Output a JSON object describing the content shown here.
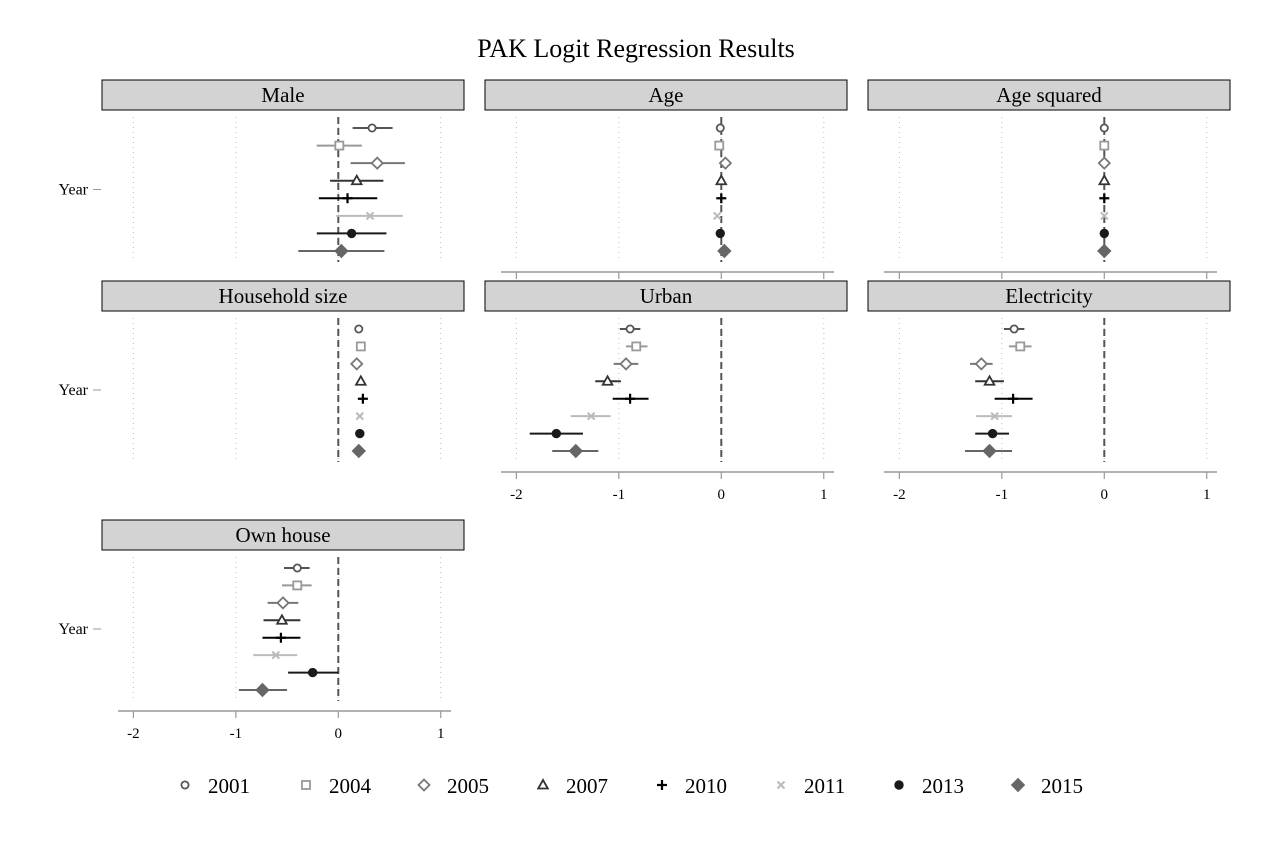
{
  "chart_data": {
    "type": "scatter",
    "subtype": "coefficient-plot",
    "title": "PAK Logit Regression Results",
    "y_axis_label": "Year",
    "x_ticks": [
      -2,
      -1,
      0,
      1
    ],
    "xlim": [
      -2.15,
      1.1
    ],
    "reference_line": 0,
    "grid": "vertical-dotted",
    "legend_position": "bottom",
    "years": [
      "2001",
      "2004",
      "2005",
      "2007",
      "2010",
      "2011",
      "2013",
      "2015"
    ],
    "styles": {
      "2001": {
        "marker": "circle-open",
        "color": "#555555"
      },
      "2004": {
        "marker": "square-open",
        "color": "#999999"
      },
      "2005": {
        "marker": "diamond-open",
        "color": "#777777"
      },
      "2007": {
        "marker": "triangle-open",
        "color": "#333333"
      },
      "2010": {
        "marker": "plus",
        "color": "#000000"
      },
      "2011": {
        "marker": "x",
        "color": "#bbbbbb"
      },
      "2013": {
        "marker": "circle-filled",
        "color": "#1a1a1a"
      },
      "2015": {
        "marker": "diamond-filled",
        "color": "#666666"
      }
    },
    "panels": [
      {
        "name": "Male",
        "show_axis": false,
        "series": [
          {
            "year": "2001",
            "est": 0.33,
            "lo": 0.14,
            "hi": 0.53
          },
          {
            "year": "2004",
            "est": 0.01,
            "lo": -0.21,
            "hi": 0.23
          },
          {
            "year": "2005",
            "est": 0.38,
            "lo": 0.12,
            "hi": 0.65
          },
          {
            "year": "2007",
            "est": 0.18,
            "lo": -0.08,
            "hi": 0.44
          },
          {
            "year": "2010",
            "est": 0.09,
            "lo": -0.19,
            "hi": 0.38
          },
          {
            "year": "2011",
            "est": 0.31,
            "lo": -0.02,
            "hi": 0.63
          },
          {
            "year": "2013",
            "est": 0.13,
            "lo": -0.21,
            "hi": 0.47
          },
          {
            "year": "2015",
            "est": 0.03,
            "lo": -0.39,
            "hi": 0.45
          }
        ]
      },
      {
        "name": "Age",
        "show_axis": true,
        "series": [
          {
            "year": "2001",
            "est": -0.01,
            "lo": -0.02,
            "hi": 0.0
          },
          {
            "year": "2004",
            "est": -0.02,
            "lo": -0.03,
            "hi": -0.01
          },
          {
            "year": "2005",
            "est": 0.04,
            "lo": 0.03,
            "hi": 0.05
          },
          {
            "year": "2007",
            "est": 0.0,
            "lo": -0.01,
            "hi": 0.01
          },
          {
            "year": "2010",
            "est": 0.0,
            "lo": -0.01,
            "hi": 0.01
          },
          {
            "year": "2011",
            "est": -0.04,
            "lo": -0.05,
            "hi": -0.03
          },
          {
            "year": "2013",
            "est": -0.01,
            "lo": -0.02,
            "hi": 0.0
          },
          {
            "year": "2015",
            "est": 0.03,
            "lo": 0.02,
            "hi": 0.04
          }
        ]
      },
      {
        "name": "Age squared",
        "show_axis": true,
        "series": [
          {
            "year": "2001",
            "est": 0.0,
            "lo": 0.0,
            "hi": 0.0
          },
          {
            "year": "2004",
            "est": 0.0,
            "lo": 0.0,
            "hi": 0.0
          },
          {
            "year": "2005",
            "est": 0.0,
            "lo": 0.0,
            "hi": 0.0
          },
          {
            "year": "2007",
            "est": 0.0,
            "lo": 0.0,
            "hi": 0.0
          },
          {
            "year": "2010",
            "est": 0.0,
            "lo": 0.0,
            "hi": 0.0
          },
          {
            "year": "2011",
            "est": 0.0,
            "lo": 0.0,
            "hi": 0.0
          },
          {
            "year": "2013",
            "est": 0.0,
            "lo": 0.0,
            "hi": 0.0
          },
          {
            "year": "2015",
            "est": 0.0,
            "lo": 0.0,
            "hi": 0.0
          }
        ]
      },
      {
        "name": "Household size",
        "show_axis": false,
        "series": [
          {
            "year": "2001",
            "est": 0.2,
            "lo": 0.19,
            "hi": 0.21
          },
          {
            "year": "2004",
            "est": 0.22,
            "lo": 0.2,
            "hi": 0.24
          },
          {
            "year": "2005",
            "est": 0.18,
            "lo": 0.16,
            "hi": 0.2
          },
          {
            "year": "2007",
            "est": 0.22,
            "lo": 0.2,
            "hi": 0.24
          },
          {
            "year": "2010",
            "est": 0.24,
            "lo": 0.22,
            "hi": 0.26
          },
          {
            "year": "2011",
            "est": 0.21,
            "lo": 0.19,
            "hi": 0.23
          },
          {
            "year": "2013",
            "est": 0.21,
            "lo": 0.19,
            "hi": 0.23
          },
          {
            "year": "2015",
            "est": 0.2,
            "lo": 0.18,
            "hi": 0.22
          }
        ]
      },
      {
        "name": "Urban",
        "show_axis": true,
        "series": [
          {
            "year": "2001",
            "est": -0.89,
            "lo": -0.99,
            "hi": -0.79
          },
          {
            "year": "2004",
            "est": -0.83,
            "lo": -0.93,
            "hi": -0.72
          },
          {
            "year": "2005",
            "est": -0.93,
            "lo": -1.05,
            "hi": -0.81
          },
          {
            "year": "2007",
            "est": -1.11,
            "lo": -1.23,
            "hi": -0.98
          },
          {
            "year": "2010",
            "est": -0.89,
            "lo": -1.06,
            "hi": -0.71
          },
          {
            "year": "2011",
            "est": -1.27,
            "lo": -1.47,
            "hi": -1.08
          },
          {
            "year": "2013",
            "est": -1.61,
            "lo": -1.87,
            "hi": -1.35
          },
          {
            "year": "2015",
            "est": -1.42,
            "lo": -1.65,
            "hi": -1.2
          }
        ]
      },
      {
        "name": "Electricity",
        "show_axis": true,
        "series": [
          {
            "year": "2001",
            "est": -0.88,
            "lo": -0.98,
            "hi": -0.78
          },
          {
            "year": "2004",
            "est": -0.82,
            "lo": -0.93,
            "hi": -0.71
          },
          {
            "year": "2005",
            "est": -1.2,
            "lo": -1.31,
            "hi": -1.09
          },
          {
            "year": "2007",
            "est": -1.12,
            "lo": -1.26,
            "hi": -0.98
          },
          {
            "year": "2010",
            "est": -0.89,
            "lo": -1.07,
            "hi": -0.7
          },
          {
            "year": "2011",
            "est": -1.07,
            "lo": -1.25,
            "hi": -0.9
          },
          {
            "year": "2013",
            "est": -1.09,
            "lo": -1.26,
            "hi": -0.93
          },
          {
            "year": "2015",
            "est": -1.12,
            "lo": -1.36,
            "hi": -0.9
          }
        ]
      },
      {
        "name": "Own house",
        "show_axis": true,
        "series": [
          {
            "year": "2001",
            "est": -0.4,
            "lo": -0.53,
            "hi": -0.28
          },
          {
            "year": "2004",
            "est": -0.4,
            "lo": -0.55,
            "hi": -0.26
          },
          {
            "year": "2005",
            "est": -0.54,
            "lo": -0.69,
            "hi": -0.39
          },
          {
            "year": "2007",
            "est": -0.55,
            "lo": -0.73,
            "hi": -0.37
          },
          {
            "year": "2010",
            "est": -0.56,
            "lo": -0.74,
            "hi": -0.37
          },
          {
            "year": "2011",
            "est": -0.61,
            "lo": -0.83,
            "hi": -0.4
          },
          {
            "year": "2013",
            "est": -0.25,
            "lo": -0.49,
            "hi": 0.0
          },
          {
            "year": "2015",
            "est": -0.74,
            "lo": -0.97,
            "hi": -0.5
          }
        ]
      }
    ]
  }
}
